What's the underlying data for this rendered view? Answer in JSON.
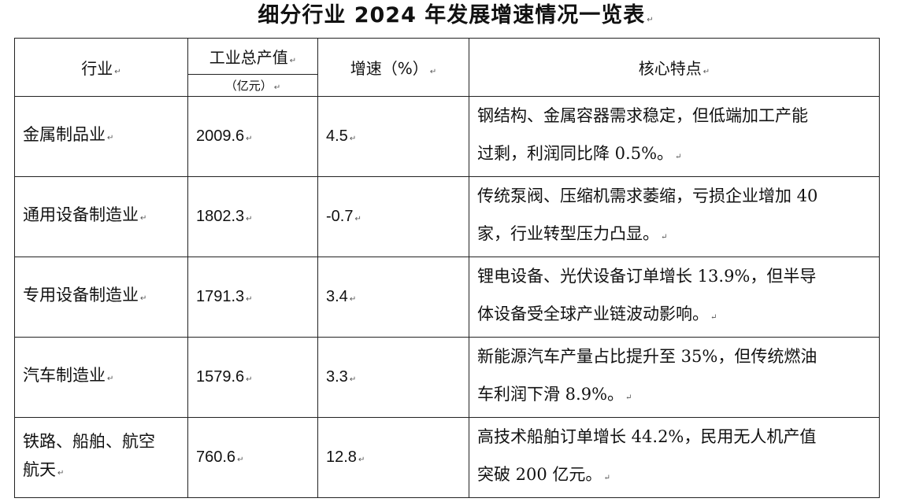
{
  "title": "细分行业 2024 年发展增速情况一览表",
  "headers": {
    "industry": "行业",
    "output_line1": "工业总产值",
    "output_line2": "（亿元）",
    "growth": "增速（%）",
    "features": "核心特点"
  },
  "para_mark": "↵",
  "rows": [
    {
      "industry": "金属制品业",
      "output": "2009.6",
      "growth": "4.5",
      "features": [
        "钢结构、金属容器需求稳定，但低端加工产能",
        "过剩，利润同比降 0.5%。"
      ]
    },
    {
      "industry": "通用设备制造业",
      "output": "1802.3",
      "growth": "-0.7",
      "features": [
        "传统泵阀、压缩机需求萎缩，亏损企业增加 40",
        "家，行业转型压力凸显。"
      ]
    },
    {
      "industry": "专用设备制造业",
      "output": "1791.3",
      "growth": "3.4",
      "features": [
        "锂电设备、光伏设备订单增长 13.9%，但半导",
        "体设备受全球产业链波动影响。"
      ]
    },
    {
      "industry": "汽车制造业",
      "output": "1579.6",
      "growth": "3.3",
      "features": [
        "新能源汽车产量占比提升至 35%，但传统燃油",
        "车利润下滑 8.9%。"
      ]
    },
    {
      "industry_lines": [
        "铁路、船舶、航空",
        "航天"
      ],
      "output": "760.6",
      "growth": "12.8",
      "features": [
        "高技术船舶订单增长 44.2%，民用无人机产值",
        "突破 200 亿元。"
      ]
    }
  ]
}
